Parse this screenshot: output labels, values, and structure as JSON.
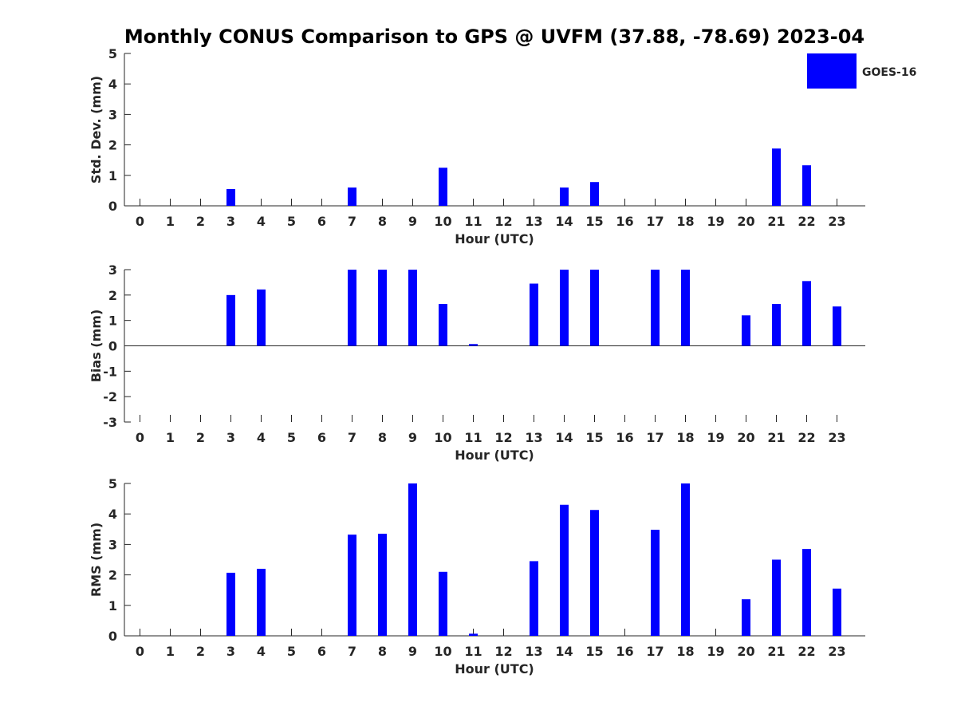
{
  "title": "Monthly CONUS Comparison to GPS @ UVFM (37.88, -78.69) 2023-04",
  "legend": {
    "label": "GOES-16",
    "color": "#0000ff"
  },
  "bar_color": "#0000ff",
  "chart_data": [
    {
      "type": "bar",
      "name": "std-dev",
      "series_name": "GOES-16",
      "ylabel": "Std. Dev. (mm)",
      "xlabel": "Hour (UTC)",
      "ylim": [
        0,
        5
      ],
      "yticks": [
        "0",
        "1",
        "2",
        "3",
        "4",
        "5"
      ],
      "categories": [
        "0",
        "1",
        "2",
        "3",
        "4",
        "5",
        "6",
        "7",
        "8",
        "9",
        "10",
        "11",
        "12",
        "13",
        "14",
        "15",
        "16",
        "17",
        "18",
        "19",
        "20",
        "21",
        "22",
        "23"
      ],
      "values": [
        null,
        null,
        null,
        0.55,
        null,
        null,
        null,
        0.6,
        null,
        null,
        1.25,
        null,
        null,
        null,
        0.6,
        0.78,
        null,
        null,
        null,
        null,
        null,
        1.88,
        1.33,
        null
      ]
    },
    {
      "type": "bar",
      "name": "bias",
      "series_name": "GOES-16",
      "ylabel": "Bias (mm)",
      "xlabel": "Hour (UTC)",
      "ylim": [
        -3,
        3
      ],
      "yticks": [
        "-3",
        "-2",
        "-1",
        "0",
        "1",
        "2",
        "3"
      ],
      "categories": [
        "0",
        "1",
        "2",
        "3",
        "4",
        "5",
        "6",
        "7",
        "8",
        "9",
        "10",
        "11",
        "12",
        "13",
        "14",
        "15",
        "16",
        "17",
        "18",
        "19",
        "20",
        "21",
        "22",
        "23"
      ],
      "values": [
        null,
        null,
        null,
        2.0,
        2.22,
        null,
        null,
        3.0,
        3.0,
        3.0,
        1.65,
        0.07,
        null,
        2.45,
        3.0,
        3.0,
        null,
        3.0,
        3.0,
        null,
        1.2,
        1.65,
        2.55,
        1.55
      ]
    },
    {
      "type": "bar",
      "name": "rms",
      "series_name": "GOES-16",
      "ylabel": "RMS (mm)",
      "xlabel": "Hour (UTC)",
      "ylim": [
        0,
        5
      ],
      "yticks": [
        "0",
        "1",
        "2",
        "3",
        "4",
        "5"
      ],
      "categories": [
        "0",
        "1",
        "2",
        "3",
        "4",
        "5",
        "6",
        "7",
        "8",
        "9",
        "10",
        "11",
        "12",
        "13",
        "14",
        "15",
        "16",
        "17",
        "18",
        "19",
        "20",
        "21",
        "22",
        "23"
      ],
      "values": [
        null,
        null,
        null,
        2.07,
        2.2,
        null,
        null,
        3.32,
        3.35,
        5.0,
        2.1,
        0.07,
        null,
        2.45,
        4.3,
        4.13,
        null,
        3.48,
        5.0,
        null,
        1.2,
        2.5,
        2.85,
        1.55
      ]
    }
  ]
}
